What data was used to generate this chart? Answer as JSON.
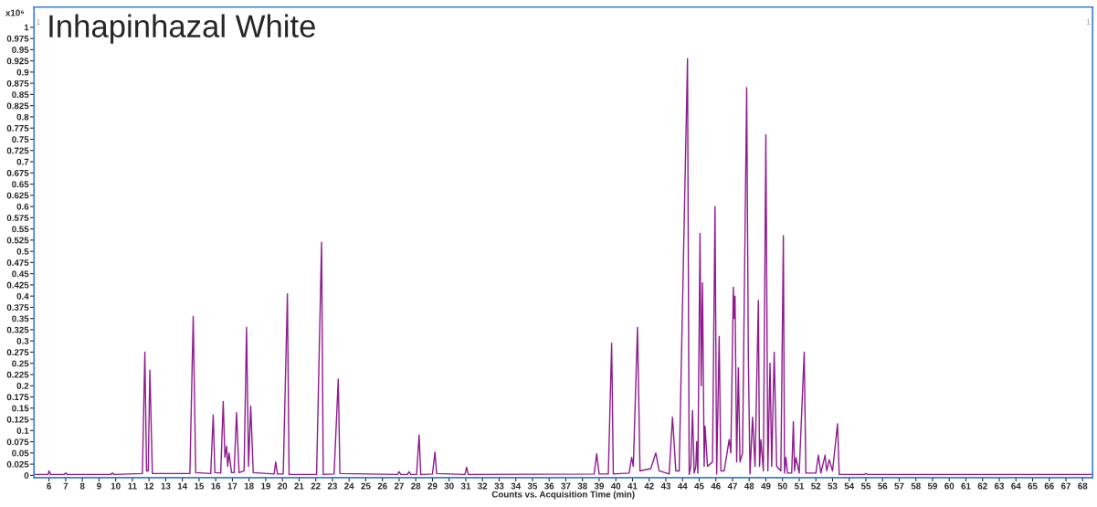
{
  "chart_data": {
    "type": "line",
    "title": "Inhapinhazal White",
    "xlabel": "Counts vs. Acquisition Time (min)",
    "ylabel": "x10⁶",
    "annotations": [
      "1",
      "1"
    ],
    "x": [
      5.1,
      5.95,
      6.0,
      6.1,
      6.9,
      7.0,
      7.1,
      9.7,
      9.8,
      9.9,
      11.6,
      11.75,
      11.85,
      11.95,
      12.05,
      12.2,
      14.45,
      14.65,
      14.8,
      15.7,
      15.85,
      15.95,
      16.3,
      16.45,
      16.55,
      16.65,
      16.72,
      16.8,
      16.95,
      17.1,
      17.25,
      17.4,
      17.7,
      17.85,
      17.97,
      18.1,
      18.25,
      19.5,
      19.6,
      19.7,
      20.05,
      20.3,
      20.4,
      22.05,
      22.35,
      22.45,
      23.1,
      23.35,
      23.45,
      26.9,
      27.0,
      27.1,
      27.5,
      27.6,
      27.7,
      28.05,
      28.2,
      28.3,
      29.0,
      29.15,
      29.25,
      30.95,
      31.05,
      31.15,
      38.7,
      38.85,
      39.0,
      39.55,
      39.75,
      39.85,
      40.8,
      40.95,
      41.05,
      41.3,
      41.45,
      42.1,
      42.4,
      42.6,
      43.2,
      43.4,
      43.6,
      43.8,
      44.3,
      44.4,
      44.5,
      44.6,
      44.7,
      44.8,
      44.85,
      44.92,
      45.05,
      45.12,
      45.2,
      45.3,
      45.35,
      45.5,
      45.8,
      45.95,
      46.05,
      46.2,
      46.3,
      46.5,
      46.8,
      46.9,
      47.05,
      47.1,
      47.15,
      47.25,
      47.35,
      47.45,
      47.6,
      47.85,
      47.95,
      48.05,
      48.2,
      48.35,
      48.55,
      48.62,
      48.7,
      48.85,
      49.0,
      49.12,
      49.25,
      49.35,
      49.5,
      49.65,
      49.9,
      50.05,
      50.12,
      50.2,
      50.3,
      50.55,
      50.65,
      50.72,
      50.8,
      51.0,
      51.3,
      51.4,
      52.0,
      52.15,
      52.3,
      52.55,
      52.65,
      52.8,
      53.0,
      53.3,
      53.4,
      54.9,
      55.0,
      55.1,
      68.6
    ],
    "series": [
      {
        "color": "#8e1a8e",
        "values": [
          0.002,
          0.002,
          0.01,
          0.002,
          0.002,
          0.005,
          0.002,
          0.002,
          0.005,
          0.002,
          0.004,
          0.275,
          0.01,
          0.01,
          0.235,
          0.004,
          0.004,
          0.355,
          0.006,
          0.004,
          0.135,
          0.006,
          0.005,
          0.165,
          0.04,
          0.065,
          0.02,
          0.05,
          0.006,
          0.006,
          0.14,
          0.006,
          0.01,
          0.33,
          0.02,
          0.155,
          0.006,
          0.003,
          0.03,
          0.003,
          0.003,
          0.405,
          0.002,
          0.002,
          0.52,
          0.002,
          0.003,
          0.215,
          0.004,
          0.002,
          0.008,
          0.002,
          0.002,
          0.008,
          0.002,
          0.002,
          0.09,
          0.002,
          0.003,
          0.052,
          0.004,
          0.002,
          0.018,
          0.002,
          0.003,
          0.048,
          0.003,
          0.003,
          0.295,
          0.003,
          0.005,
          0.04,
          0.02,
          0.33,
          0.01,
          0.015,
          0.05,
          0.01,
          0.003,
          0.13,
          0.01,
          0.01,
          0.93,
          0.002,
          0.02,
          0.145,
          0.005,
          0.02,
          0.075,
          0.005,
          0.54,
          0.2,
          0.43,
          0.02,
          0.11,
          0.02,
          0.03,
          0.6,
          0.003,
          0.31,
          0.01,
          0.01,
          0.08,
          0.05,
          0.42,
          0.35,
          0.4,
          0.03,
          0.24,
          0.03,
          0.05,
          0.865,
          0.26,
          0.003,
          0.13,
          0.02,
          0.39,
          0.02,
          0.08,
          0.01,
          0.76,
          0.01,
          0.25,
          0.02,
          0.275,
          0.02,
          0.01,
          0.535,
          0.005,
          0.04,
          0.005,
          0.005,
          0.12,
          0.01,
          0.04,
          0.005,
          0.275,
          0.005,
          0.005,
          0.045,
          0.005,
          0.045,
          0.01,
          0.035,
          0.01,
          0.115,
          0.002,
          0.002,
          0.004,
          0.002,
          0.002
        ]
      }
    ],
    "xlim": [
      5.1,
      68.6
    ],
    "ylim": [
      -0.005,
      1.045
    ],
    "xticks": [
      6,
      7,
      8,
      9,
      10,
      11,
      12,
      13,
      14,
      15,
      16,
      17,
      18,
      19,
      20,
      21,
      22,
      23,
      24,
      25,
      26,
      27,
      28,
      29,
      30,
      31,
      32,
      33,
      34,
      35,
      36,
      37,
      38,
      39,
      40,
      41,
      42,
      43,
      44,
      45,
      46,
      47,
      48,
      49,
      50,
      51,
      52,
      53,
      54,
      55,
      56,
      57,
      58,
      59,
      60,
      61,
      62,
      63,
      64,
      65,
      66,
      67,
      68
    ],
    "yticks": [
      0,
      0.025,
      0.05,
      0.075,
      0.1,
      0.125,
      0.15,
      0.175,
      0.2,
      0.225,
      0.25,
      0.275,
      0.3,
      0.325,
      0.35,
      0.375,
      0.4,
      0.425,
      0.45,
      0.475,
      0.5,
      0.525,
      0.55,
      0.575,
      0.6,
      0.625,
      0.65,
      0.675,
      0.7,
      0.725,
      0.75,
      0.775,
      0.8,
      0.825,
      0.85,
      0.875,
      0.9,
      0.925,
      0.95,
      0.975,
      1
    ],
    "grid": false,
    "legend": false
  }
}
